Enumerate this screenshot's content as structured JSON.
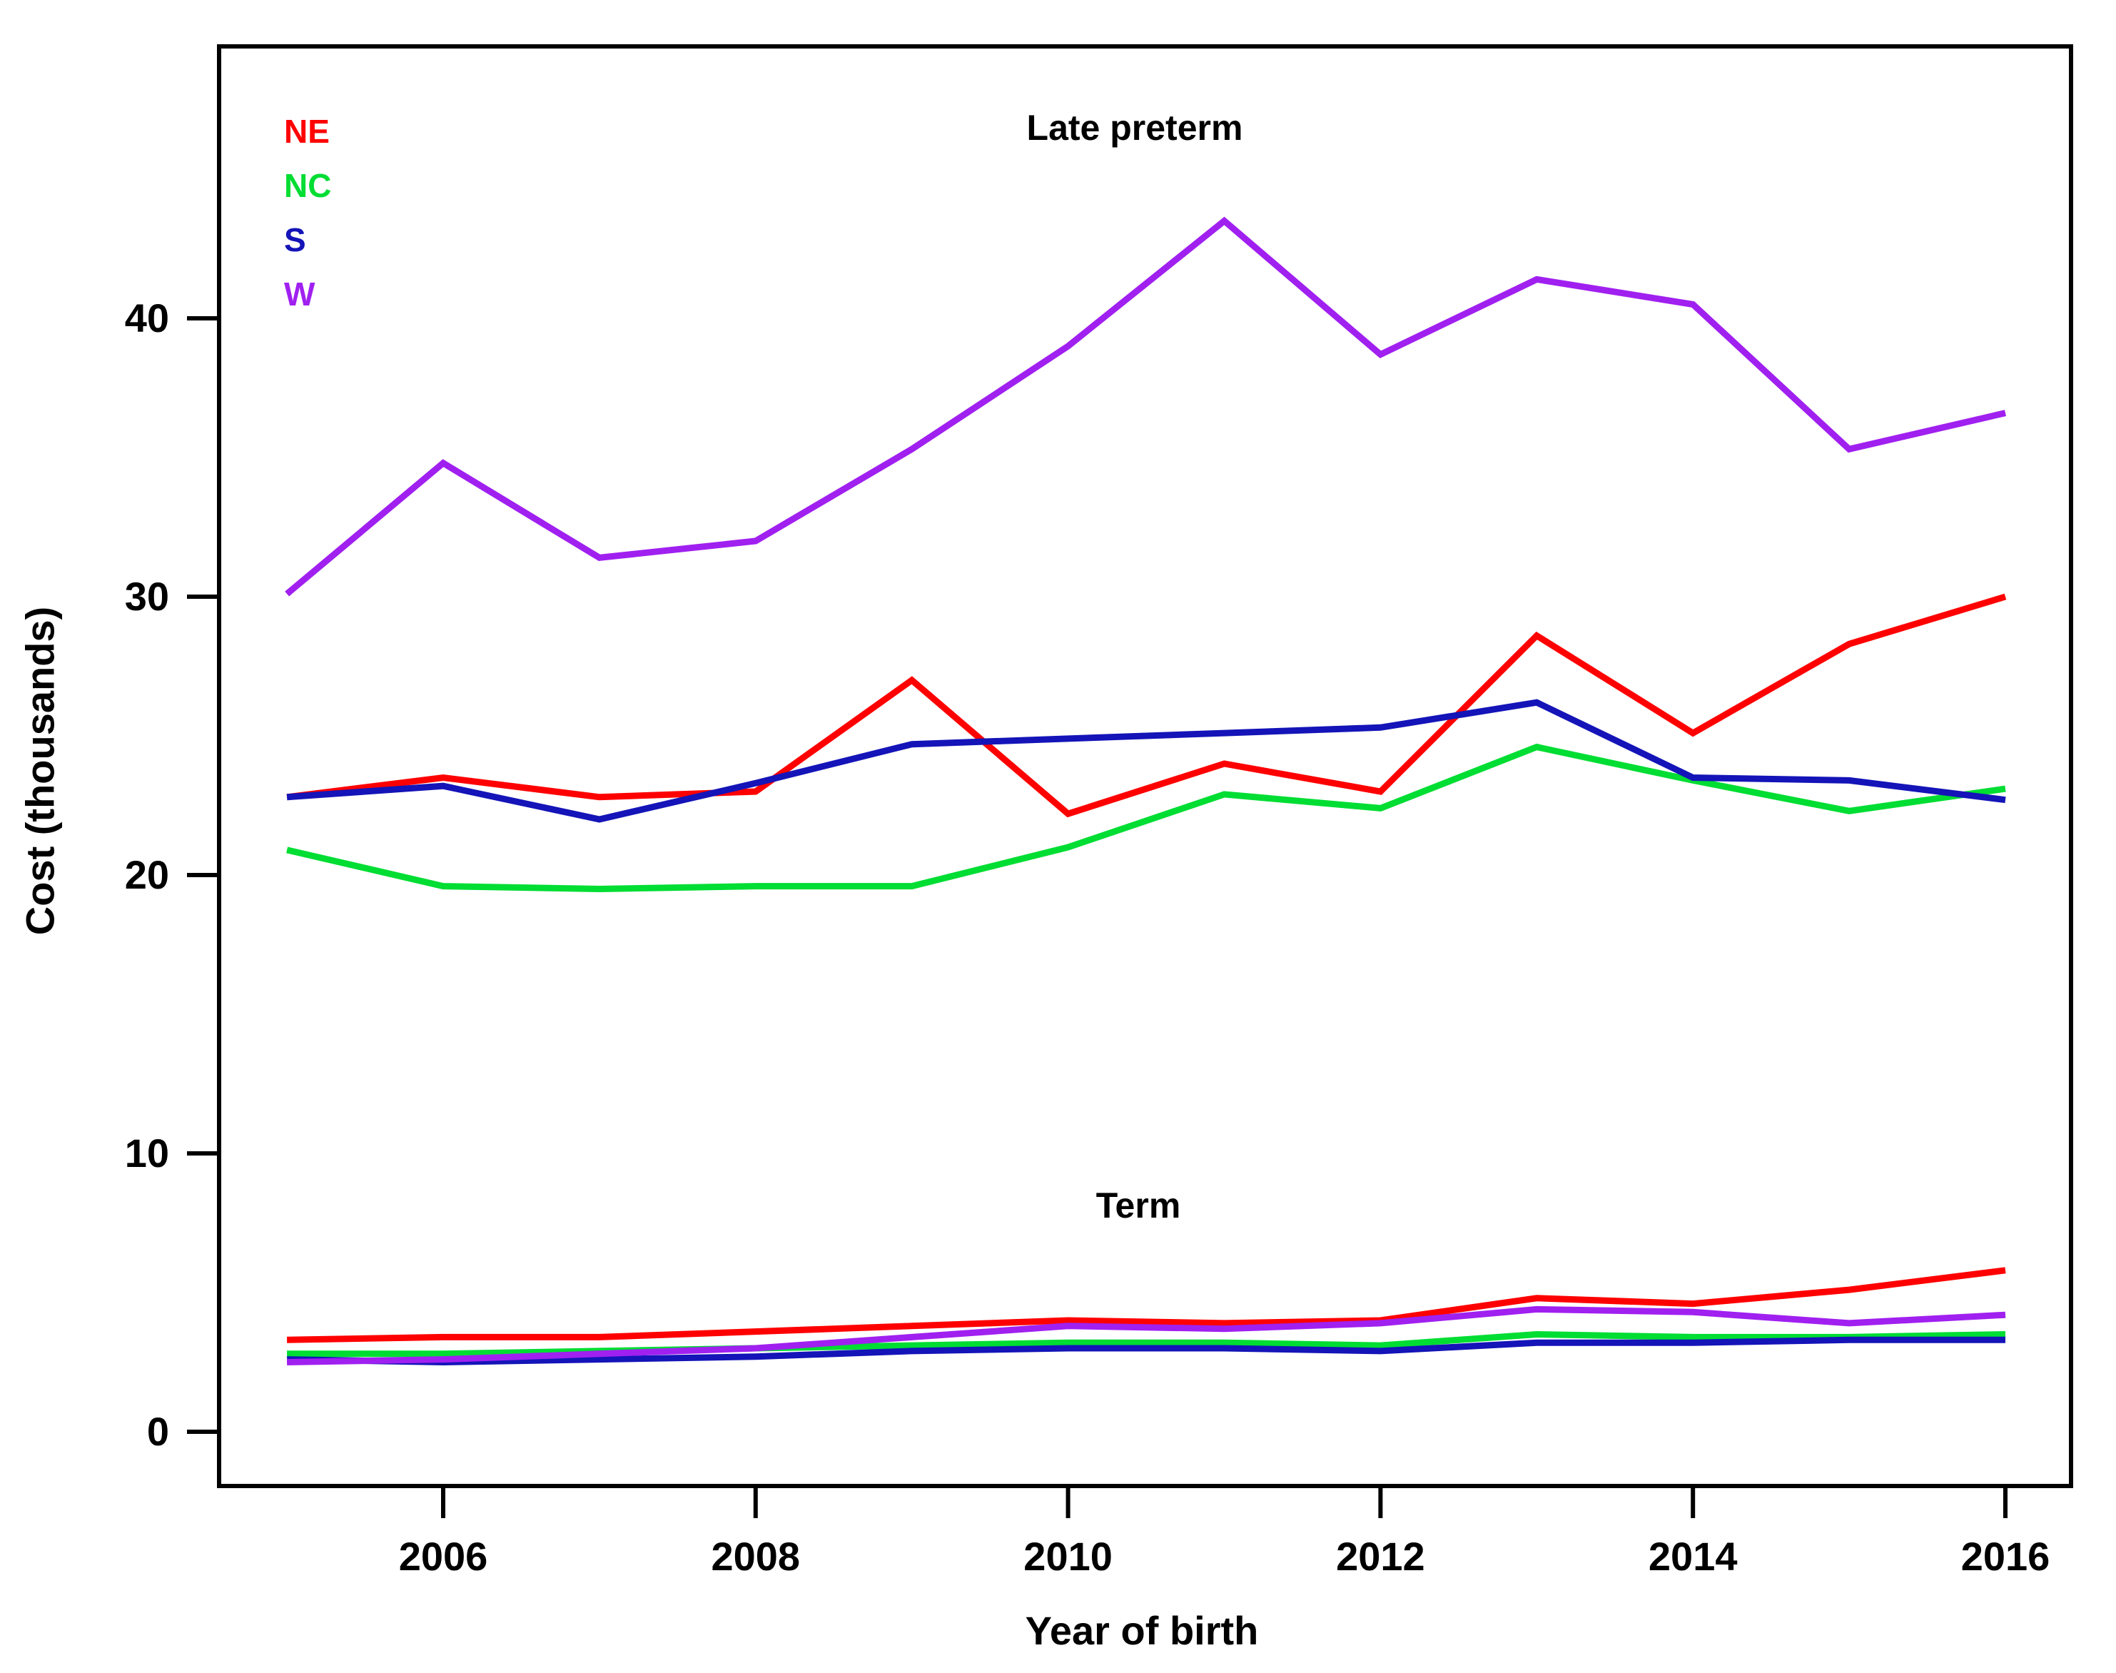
{
  "figure": {
    "background": "#ffffff",
    "axis_color": "#000000",
    "tick_labels_y": [
      "0",
      "10",
      "20",
      "30",
      "40"
    ],
    "tick_labels_x": [
      "2006",
      "2008",
      "2010",
      "2012",
      "2014",
      "2016"
    ]
  },
  "labels": {
    "y_axis": "Cost (thousands)",
    "x_axis": "Year of birth",
    "group_top": "Late preterm",
    "group_bottom": "Term"
  },
  "legend": {
    "items": [
      {
        "label": "NE",
        "color": "#FF0000"
      },
      {
        "label": "NC",
        "color": "#00DD33"
      },
      {
        "label": "S",
        "color": "#1414B8"
      },
      {
        "label": "W",
        "color": "#A020F0"
      }
    ]
  },
  "chart_data": {
    "type": "line",
    "title": "",
    "xlabel": "Year of birth",
    "ylabel": "Cost (thousands)",
    "x": [
      2005,
      2006,
      2007,
      2008,
      2009,
      2010,
      2011,
      2012,
      2013,
      2014,
      2015,
      2016
    ],
    "x_ticks": [
      2006,
      2008,
      2010,
      2012,
      2014,
      2016
    ],
    "y_ticks": [
      0,
      10,
      20,
      30,
      40
    ],
    "ylim": [
      -2,
      50
    ],
    "grid": false,
    "legend_position": "top-left",
    "annotations": [
      "Late preterm",
      "Term"
    ],
    "groups": [
      {
        "name": "Late preterm",
        "series": [
          {
            "name": "NE",
            "color": "#FF0000",
            "values": [
              22.8,
              23.5,
              22.8,
              23.0,
              27.0,
              22.2,
              24.0,
              23.0,
              28.6,
              25.1,
              28.3,
              30.0
            ]
          },
          {
            "name": "NC",
            "color": "#00DD33",
            "values": [
              20.9,
              19.6,
              19.5,
              19.6,
              19.6,
              21.0,
              22.9,
              22.4,
              24.6,
              23.4,
              22.3,
              23.1
            ]
          },
          {
            "name": "S",
            "color": "#1414B8",
            "values": [
              22.8,
              23.2,
              22.0,
              23.3,
              24.7,
              24.9,
              25.1,
              25.3,
              26.2,
              23.5,
              23.4,
              22.7
            ]
          },
          {
            "name": "W",
            "color": "#A020F0",
            "values": [
              30.1,
              34.8,
              31.4,
              32.0,
              35.3,
              39.0,
              43.5,
              38.7,
              41.4,
              40.5,
              35.3,
              36.6
            ]
          }
        ]
      },
      {
        "name": "Term",
        "series": [
          {
            "name": "NE",
            "color": "#FF0000",
            "values": [
              3.3,
              3.4,
              3.4,
              3.6,
              3.8,
              4.0,
              3.9,
              4.0,
              4.8,
              4.6,
              5.1,
              5.8
            ]
          },
          {
            "name": "NC",
            "color": "#00DD33",
            "values": [
              2.8,
              2.8,
              2.9,
              3.0,
              3.1,
              3.2,
              3.2,
              3.1,
              3.5,
              3.4,
              3.4,
              3.5
            ]
          },
          {
            "name": "S",
            "color": "#1414B8",
            "values": [
              2.6,
              2.5,
              2.6,
              2.7,
              2.9,
              3.0,
              3.0,
              2.9,
              3.2,
              3.2,
              3.3,
              3.3
            ]
          },
          {
            "name": "W",
            "color": "#A020F0",
            "values": [
              2.5,
              2.6,
              2.8,
              3.0,
              3.4,
              3.8,
              3.7,
              3.9,
              4.4,
              4.3,
              3.9,
              4.2
            ]
          }
        ]
      }
    ]
  }
}
